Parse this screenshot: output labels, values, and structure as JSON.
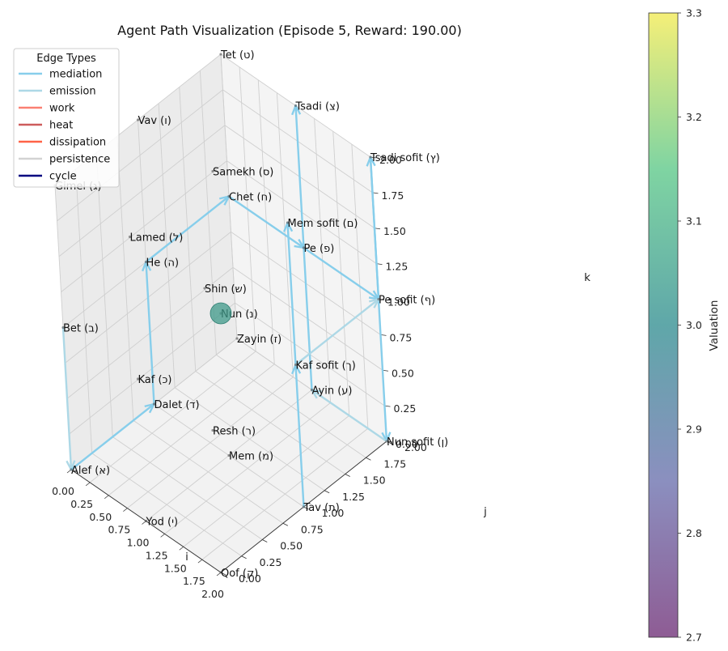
{
  "chart_data": {
    "type": "scatter",
    "projection": "3d",
    "title": "Agent Path Visualization (Episode 5, Reward: 190.00)",
    "xlabel": "i",
    "ylabel": "j",
    "zlabel": "k",
    "xlim": [
      0,
      2
    ],
    "ylim": [
      0,
      2
    ],
    "zlim": [
      0,
      2
    ],
    "x_ticks": [
      "0.00",
      "0.25",
      "0.50",
      "0.75",
      "1.00",
      "1.25",
      "1.50",
      "1.75",
      "2.00"
    ],
    "y_ticks": [
      "0.00",
      "0.25",
      "0.50",
      "0.75",
      "1.00",
      "1.25",
      "1.50",
      "1.75",
      "2.00"
    ],
    "z_ticks": [
      "0.00",
      "0.25",
      "0.50",
      "0.75",
      "1.00",
      "1.25",
      "1.50",
      "1.75",
      "2.00"
    ],
    "grid": true,
    "legend": {
      "title": "Edge Types",
      "placement": "top-left",
      "entries": [
        {
          "label": "mediation",
          "color": "#87ceeb"
        },
        {
          "label": "emission",
          "color": "#add8e6"
        },
        {
          "label": "work",
          "color": "#fa8072"
        },
        {
          "label": "heat",
          "color": "#cd5c5c"
        },
        {
          "label": "dissipation",
          "color": "#ff6347"
        },
        {
          "label": "persistence",
          "color": "#d3d3d3"
        },
        {
          "label": "cycle",
          "color": "#000080"
        }
      ]
    },
    "colorbar": {
      "label": "Valuation",
      "min": 2.7,
      "max": 3.3,
      "ticks": [
        "2.7",
        "2.8",
        "2.9",
        "3.0",
        "3.1",
        "3.2",
        "3.3"
      ],
      "colormap": "viridis"
    },
    "nodes": [
      {
        "name": "Alef (א)",
        "i": 0,
        "j": 0,
        "k": 0
      },
      {
        "name": "Bet (ב)",
        "i": 0,
        "j": 0,
        "k": 1
      },
      {
        "name": "Gimel (ג)",
        "i": 0,
        "j": 0,
        "k": 2
      },
      {
        "name": "Dalet (ד)",
        "i": 0,
        "j": 1,
        "k": 0
      },
      {
        "name": "He (ה)",
        "i": 0,
        "j": 1,
        "k": 1
      },
      {
        "name": "Vav (ו)",
        "i": 0,
        "j": 1,
        "k": 2
      },
      {
        "name": "Zayin (ז)",
        "i": 0,
        "j": 2,
        "k": 0
      },
      {
        "name": "Chet (ח)",
        "i": 0,
        "j": 2,
        "k": 1
      },
      {
        "name": "Tet (ט)",
        "i": 0,
        "j": 2,
        "k": 2
      },
      {
        "name": "Yod (י)",
        "i": 1,
        "j": 0,
        "k": 0
      },
      {
        "name": "Kaf (כ)",
        "i": 1,
        "j": 0,
        "k": 1
      },
      {
        "name": "Lamed (ל)",
        "i": 1,
        "j": 0,
        "k": 2
      },
      {
        "name": "Mem (מ)",
        "i": 1,
        "j": 1,
        "k": 0
      },
      {
        "name": "Nun (נ)",
        "i": 1,
        "j": 1,
        "k": 1
      },
      {
        "name": "Samekh (ס)",
        "i": 1,
        "j": 1,
        "k": 2
      },
      {
        "name": "Ayin (ע)",
        "i": 1,
        "j": 2,
        "k": 0
      },
      {
        "name": "Pe (פ)",
        "i": 1,
        "j": 2,
        "k": 1
      },
      {
        "name": "Tsadi (צ)",
        "i": 1,
        "j": 2,
        "k": 2
      },
      {
        "name": "Qof (ק)",
        "i": 2,
        "j": 0,
        "k": 0
      },
      {
        "name": "Resh (ר)",
        "i": 2,
        "j": 0,
        "k": 1
      },
      {
        "name": "Shin (ש)",
        "i": 2,
        "j": 0,
        "k": 2
      },
      {
        "name": "Tav (ת)",
        "i": 2,
        "j": 1,
        "k": 0
      },
      {
        "name": "Kaf sofit (ך)",
        "i": 2,
        "j": 1,
        "k": 1
      },
      {
        "name": "Mem sofit (ם)",
        "i": 2,
        "j": 1,
        "k": 2
      },
      {
        "name": "Nun sofit (ן)",
        "i": 2,
        "j": 2,
        "k": 0
      },
      {
        "name": "Pe sofit (ף)",
        "i": 2,
        "j": 2,
        "k": 1
      },
      {
        "name": "Tsadi sofit (ץ)",
        "i": 2,
        "j": 2,
        "k": 2
      }
    ],
    "current_node": {
      "name": "Nun (נ)",
      "valuation": 3.0
    },
    "path_edges": [
      {
        "from": "Bet (ב)",
        "to": "Alef (א)",
        "type": "emission"
      },
      {
        "from": "Alef (א)",
        "to": "Dalet (ד)",
        "type": "mediation"
      },
      {
        "from": "Dalet (ד)",
        "to": "He (ה)",
        "type": "mediation"
      },
      {
        "from": "He (ה)",
        "to": "Chet (ח)",
        "type": "mediation"
      },
      {
        "from": "Chet (ח)",
        "to": "Pe (פ)",
        "type": "mediation"
      },
      {
        "from": "Pe (פ)",
        "to": "Pe sofit (ף)",
        "type": "mediation"
      },
      {
        "from": "Pe sofit (ף)",
        "to": "Tsadi sofit (ץ)",
        "type": "mediation"
      },
      {
        "from": "Tsadi sofit (ץ)",
        "to": "Nun sofit (ן)",
        "type": "mediation"
      },
      {
        "from": "Nun sofit (ן)",
        "to": "Ayin (ע)",
        "type": "emission"
      },
      {
        "from": "Ayin (ע)",
        "to": "Tsadi (צ)",
        "type": "mediation"
      },
      {
        "from": "Tav (ת)",
        "to": "Kaf sofit (ך)",
        "type": "mediation"
      },
      {
        "from": "Kaf sofit (ך)",
        "to": "Mem sofit (ם)",
        "type": "mediation"
      },
      {
        "from": "Kaf sofit (ך)",
        "to": "Pe sofit (ף)",
        "type": "emission"
      }
    ]
  }
}
